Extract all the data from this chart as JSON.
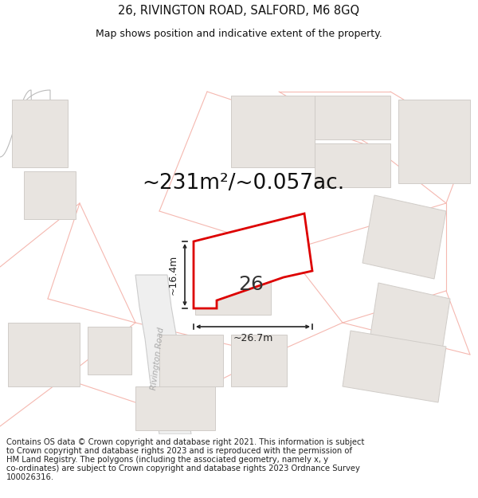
{
  "title_line1": "26, RIVINGTON ROAD, SALFORD, M6 8GQ",
  "title_line2": "Map shows position and indicative extent of the property.",
  "area_text": "~231m²/~0.057ac.",
  "label_width": "~26.7m",
  "label_height": "~16.4m",
  "plot_number": "26",
  "footer_lines": [
    "Contains OS data © Crown copyright and database right 2021. This information is subject",
    "to Crown copyright and database rights 2023 and is reproduced with the permission of",
    "HM Land Registry. The polygons (including the associated geometry, namely x, y",
    "co-ordinates) are subject to Crown copyright and database rights 2023 Ordnance Survey",
    "100026316."
  ],
  "bg_color": "#ffffff",
  "map_bg_color": "#f7f5f2",
  "plot_fill": "#ffffff",
  "plot_edge_color": "#dd0000",
  "building_fill": "#e8e4e0",
  "building_edge": "#d0ccc8",
  "boundary_line_color": "#f5b8b0",
  "road_fill": "#f0ece4",
  "road_edge": "#d8d0c0",
  "dim_color": "#222222",
  "road_text_color": "#aaaaaa",
  "title_fontsize": 10.5,
  "subtitle_fontsize": 9,
  "area_fontsize": 19,
  "footer_fontsize": 7.2,
  "plot_label_fontsize": 18
}
